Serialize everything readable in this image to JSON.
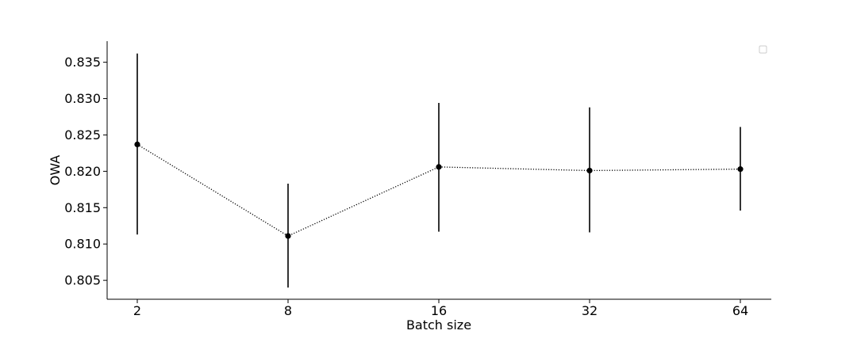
{
  "chart_data": {
    "type": "line",
    "title": "",
    "xlabel": "Batch size",
    "ylabel": "OWA",
    "categories": [
      "2",
      "8",
      "16",
      "32",
      "64"
    ],
    "series": [
      {
        "values": [
          0.8237,
          0.8111,
          0.8206,
          0.8201,
          0.8203
        ],
        "error_low": [
          0.8113,
          0.804,
          0.8117,
          0.8116,
          0.8146
        ],
        "error_high": [
          0.8362,
          0.8183,
          0.8294,
          0.8288,
          0.8261
        ],
        "color": "#000000",
        "line_style": "dotted",
        "marker": "circle"
      }
    ],
    "ylim": [
      0.8024,
      0.8379
    ],
    "yticks": [
      "0.805",
      "0.810",
      "0.815",
      "0.820",
      "0.825",
      "0.830",
      "0.835"
    ],
    "grid": false,
    "legend": {
      "placement": "top-right",
      "entries": []
    }
  }
}
